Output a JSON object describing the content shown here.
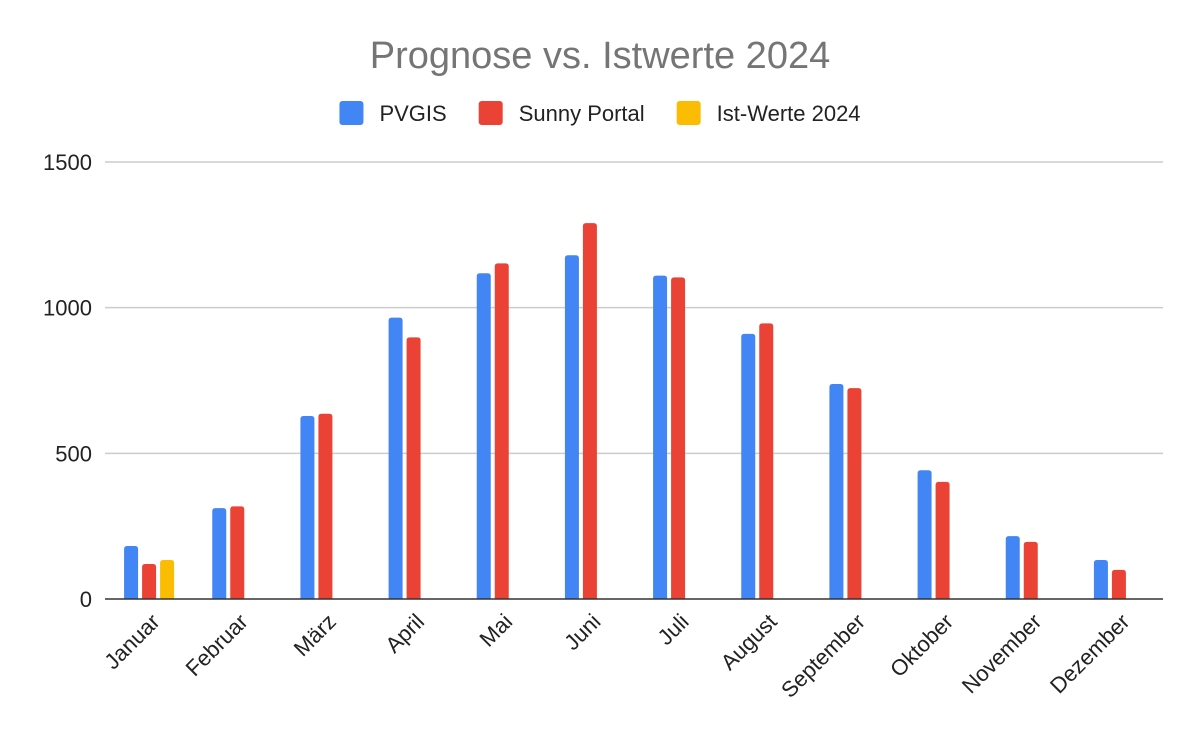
{
  "chart_data": {
    "type": "bar",
    "title": "Prognose vs. Istwerte 2024",
    "xlabel": "",
    "ylabel": "",
    "ylim": [
      0,
      1500
    ],
    "yticks": [
      0,
      500,
      1000,
      1500
    ],
    "grid": true,
    "legend_position": "top",
    "categories": [
      "Januar",
      "Februar",
      "März",
      "April",
      "Mai",
      "Juni",
      "Juli",
      "August",
      "September",
      "Oktober",
      "November",
      "Dezember"
    ],
    "series": [
      {
        "name": "PVGIS",
        "color": "#4285F4",
        "values": [
          182,
          312,
          628,
          966,
          1118,
          1180,
          1110,
          910,
          738,
          442,
          216,
          134
        ]
      },
      {
        "name": "Sunny Portal",
        "color": "#EA4335",
        "values": [
          120,
          318,
          636,
          898,
          1152,
          1290,
          1104,
          946,
          724,
          402,
          196,
          100
        ]
      },
      {
        "name": "Ist-Werte 2024",
        "color": "#FBBC04",
        "values": [
          134,
          null,
          null,
          null,
          null,
          null,
          null,
          null,
          null,
          null,
          null,
          null
        ]
      }
    ]
  }
}
